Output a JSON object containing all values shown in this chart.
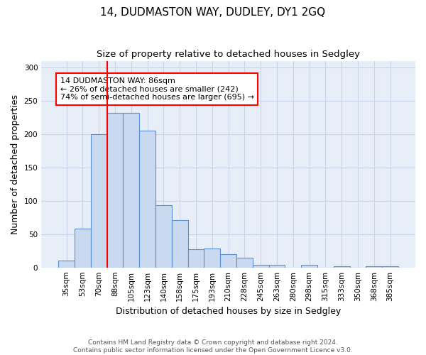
{
  "title": "14, DUDMASTON WAY, DUDLEY, DY1 2GQ",
  "subtitle": "Size of property relative to detached houses in Sedgley",
  "xlabel": "Distribution of detached houses by size in Sedgley",
  "ylabel": "Number of detached properties",
  "categories": [
    "35sqm",
    "53sqm",
    "70sqm",
    "88sqm",
    "105sqm",
    "123sqm",
    "140sqm",
    "158sqm",
    "175sqm",
    "193sqm",
    "210sqm",
    "228sqm",
    "245sqm",
    "263sqm",
    "280sqm",
    "298sqm",
    "315sqm",
    "333sqm",
    "350sqm",
    "368sqm",
    "385sqm"
  ],
  "values": [
    10,
    58,
    200,
    232,
    232,
    205,
    93,
    71,
    27,
    28,
    20,
    15,
    4,
    4,
    0,
    4,
    0,
    2,
    0,
    2,
    2
  ],
  "bar_color": "#c9d9f0",
  "bar_edge_color": "#5b8fd4",
  "red_line_index": 3,
  "annotation_text": "14 DUDMASTON WAY: 86sqm\n← 26% of detached houses are smaller (242)\n74% of semi-detached houses are larger (695) →",
  "annotation_box_color": "white",
  "annotation_box_edge_color": "red",
  "red_line_color": "red",
  "ylim": [
    0,
    310
  ],
  "yticks": [
    0,
    50,
    100,
    150,
    200,
    250,
    300
  ],
  "grid_color": "#c8d4e8",
  "background_color": "#e8eef8",
  "footer_line1": "Contains HM Land Registry data © Crown copyright and database right 2024.",
  "footer_line2": "Contains public sector information licensed under the Open Government Licence v3.0."
}
